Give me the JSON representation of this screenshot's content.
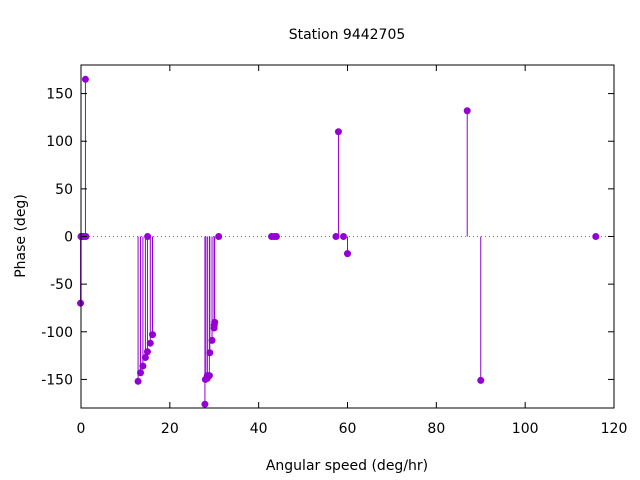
{
  "chart_data": {
    "type": "scatter",
    "style": "impulses-with-points",
    "title": "Station 9442705",
    "xlabel": "Angular speed (deg/hr)",
    "ylabel": "Phase (deg)",
    "xlim": [
      0,
      120
    ],
    "ylim": [
      -180,
      180
    ],
    "xticks": [
      0,
      20,
      40,
      60,
      80,
      100,
      120
    ],
    "yticks": [
      -150,
      -100,
      -50,
      0,
      50,
      100,
      150
    ],
    "xtick_labels": [
      "0",
      "20",
      "40",
      "60",
      "80",
      "100",
      "120"
    ],
    "ytick_labels": [
      "-150",
      "-100",
      "-50",
      "0",
      "50",
      "100",
      "150"
    ],
    "zero_line": true,
    "grid": false,
    "color": "#9400d3",
    "series": [
      {
        "points": [
          [
            -0.1,
            -70
          ],
          [
            0.0,
            0
          ],
          [
            0.04,
            0
          ],
          [
            0.08,
            0
          ],
          [
            0.5,
            0
          ],
          [
            0.55,
            0
          ],
          [
            1.0,
            165
          ],
          [
            1.1,
            0
          ],
          [
            12.85,
            -152
          ],
          [
            13.4,
            -143
          ],
          [
            13.94,
            -136
          ],
          [
            14.5,
            -127
          ],
          [
            14.96,
            -121
          ],
          [
            15.0,
            0
          ],
          [
            15.6,
            -112
          ],
          [
            16.1,
            -103
          ],
          [
            27.9,
            -176
          ],
          [
            28.0,
            -150
          ],
          [
            28.4,
            -149
          ],
          [
            28.44,
            -146
          ],
          [
            28.9,
            -146
          ],
          [
            29.0,
            -122
          ],
          [
            29.5,
            -109
          ],
          [
            29.96,
            -96
          ],
          [
            30.0,
            -93
          ],
          [
            30.1,
            -90
          ],
          [
            31.0,
            0
          ],
          [
            42.9,
            0
          ],
          [
            43.5,
            0
          ],
          [
            44.0,
            0
          ],
          [
            57.4,
            0
          ],
          [
            57.96,
            110
          ],
          [
            59.1,
            0
          ],
          [
            60.0,
            -18
          ],
          [
            86.95,
            132
          ],
          [
            90.0,
            -151
          ],
          [
            115.9,
            0
          ]
        ]
      }
    ]
  }
}
